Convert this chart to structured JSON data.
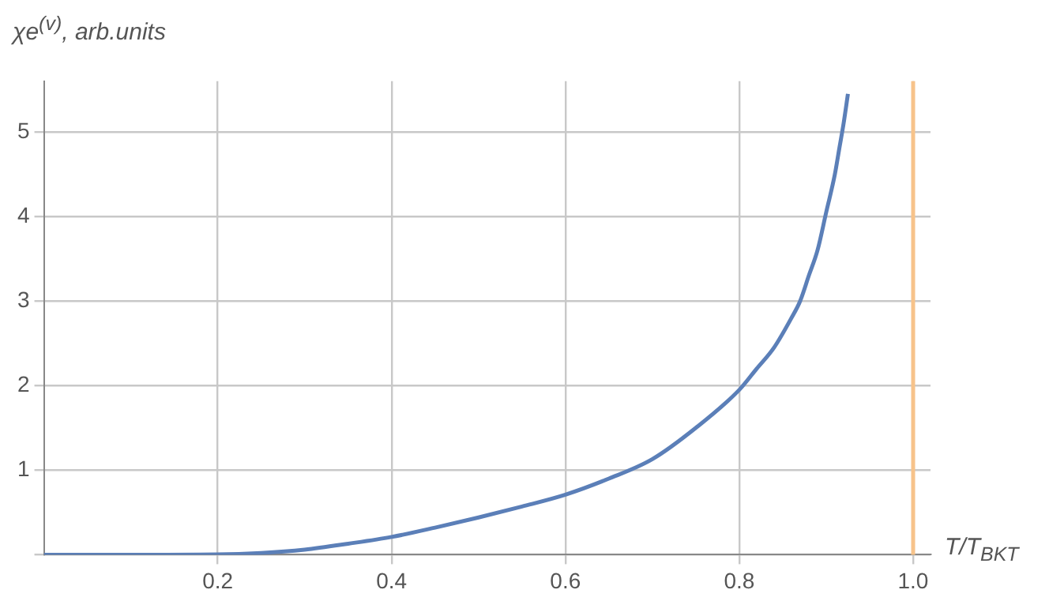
{
  "chart_data": {
    "type": "line",
    "ylabel": "χe$^{(v)}$, arb.units",
    "xlabel": "T/T$_{BKT}$",
    "x": [
      0,
      0.1,
      0.2,
      0.25,
      0.3,
      0.35,
      0.4,
      0.45,
      0.5,
      0.55,
      0.6,
      0.65,
      0.7,
      0.75,
      0.8,
      0.82,
      0.84,
      0.86,
      0.87,
      0.88,
      0.89,
      0.9,
      0.91,
      0.915,
      0.92,
      0.925
    ],
    "series": [
      {
        "color": "#5b7fb8",
        "values": [
          0,
          0,
          0.003,
          0.02,
          0.06,
          0.13,
          0.21,
          0.32,
          0.44,
          0.57,
          0.71,
          0.9,
          1.13,
          1.5,
          1.95,
          2.2,
          2.45,
          2.8,
          3.0,
          3.3,
          3.6,
          4.05,
          4.5,
          4.8,
          5.1,
          5.45
        ]
      }
    ],
    "xlim": [
      0,
      1.02
    ],
    "ylim": [
      0,
      5.6
    ],
    "xticks": [
      0.2,
      0.4,
      0.6,
      0.8,
      {
        "value": 1.0,
        "label": "1.0"
      }
    ],
    "yticks": [
      {
        "value": 0,
        "label": null
      },
      1,
      2,
      3,
      4,
      5
    ],
    "ref_lines": [
      {
        "axis": "x",
        "value": 1.0,
        "color": "#f7c38a"
      }
    ],
    "grid": true,
    "legend": false,
    "marker": "none",
    "line_style": "solid"
  }
}
